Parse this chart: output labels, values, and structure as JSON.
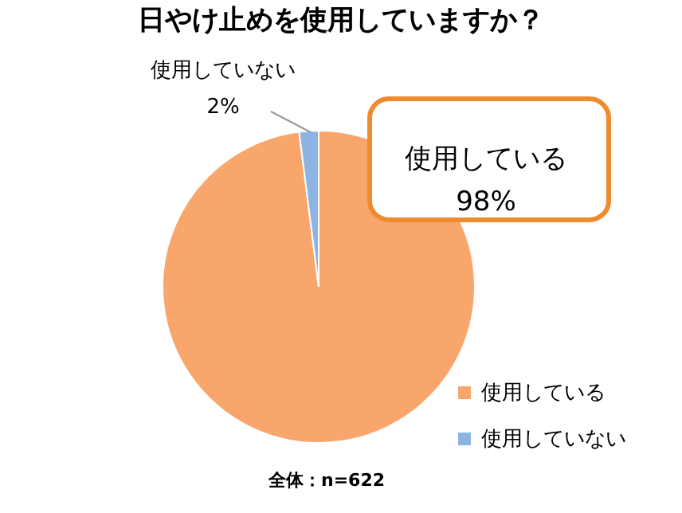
{
  "chart_data": {
    "type": "pie",
    "title": "日やけ止めを使用していますか？",
    "categories": [
      "使用している",
      "使用していない"
    ],
    "values": [
      98,
      2
    ],
    "colors": [
      "#f9a66c",
      "#8db3e2"
    ],
    "data_labels": true,
    "value_labels": [
      "98%",
      "2%"
    ],
    "legend": "bottom right",
    "annotations": [
      "全体：n=622"
    ]
  }
}
